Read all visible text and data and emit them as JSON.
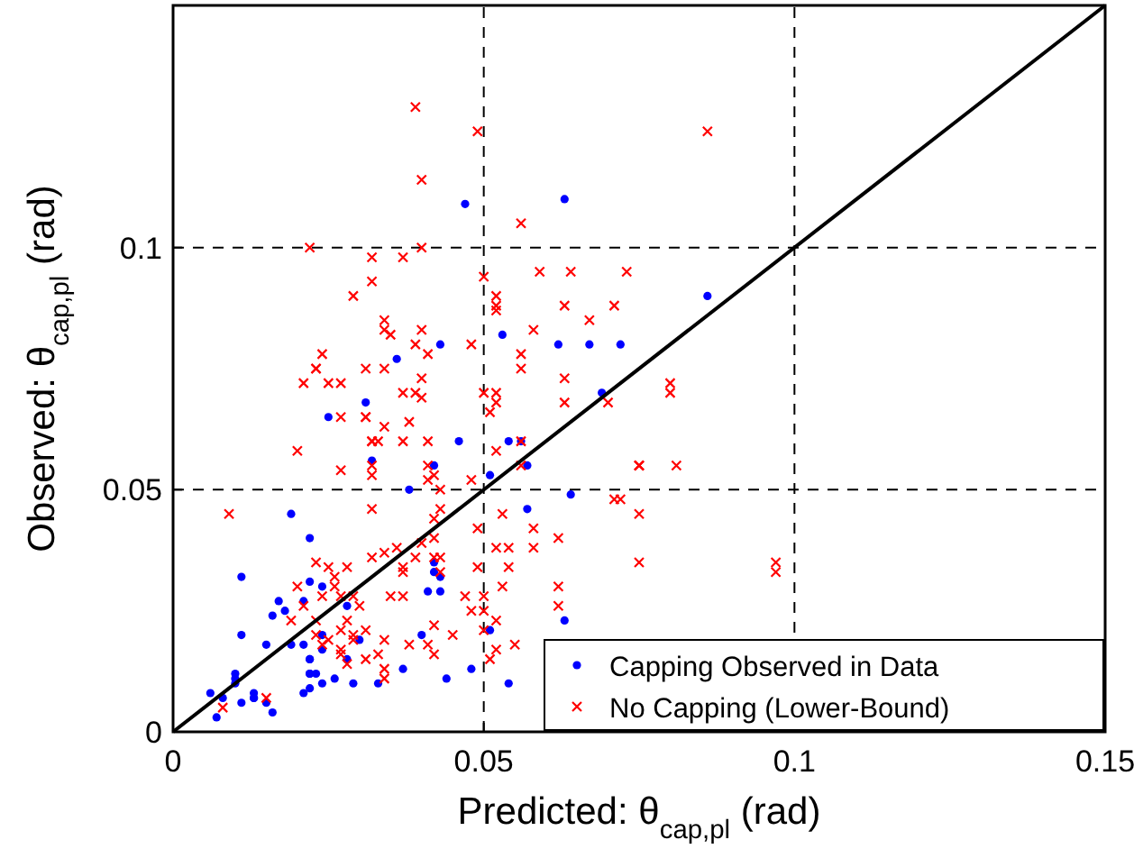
{
  "chart_data": {
    "type": "scatter",
    "xlabel": "Predicted: θ$_{cap,pl}$ (rad)",
    "ylabel": "Observed: θ$_{cap,pl}$ (rad)",
    "xlim": [
      0,
      0.15
    ],
    "ylim": [
      0,
      0.15
    ],
    "xticks": [
      0,
      0.05,
      0.1,
      0.15
    ],
    "yticks": [
      0,
      0.05,
      0.1
    ],
    "grid": true,
    "legend": "bottom right",
    "series": [
      {
        "name": "Capping Observed in Data",
        "color": "#0000ff",
        "marker": "circle",
        "x": [
          0.047,
          0.063,
          0.053,
          0.043,
          0.062,
          0.067,
          0.072,
          0.036,
          0.086,
          0.031,
          0.025,
          0.032,
          0.042,
          0.046,
          0.054,
          0.056,
          0.057,
          0.051,
          0.038,
          0.069,
          0.064,
          0.057,
          0.019,
          0.022,
          0.011,
          0.022,
          0.017,
          0.018,
          0.016,
          0.021,
          0.024,
          0.028,
          0.042,
          0.043,
          0.041,
          0.043,
          0.042,
          0.011,
          0.019,
          0.015,
          0.021,
          0.024,
          0.024,
          0.022,
          0.022,
          0.022,
          0.022,
          0.023,
          0.022,
          0.024,
          0.026,
          0.028,
          0.029,
          0.03,
          0.033,
          0.037,
          0.04,
          0.044,
          0.048,
          0.051,
          0.054,
          0.063,
          0.01,
          0.01,
          0.01,
          0.011,
          0.008,
          0.006,
          0.007,
          0.013,
          0.013,
          0.013,
          0.015,
          0.016,
          0.021
        ],
        "values": [
          0.109,
          0.11,
          0.082,
          0.08,
          0.08,
          0.08,
          0.08,
          0.077,
          0.09,
          0.068,
          0.065,
          0.056,
          0.055,
          0.06,
          0.06,
          0.06,
          0.055,
          0.053,
          0.05,
          0.07,
          0.049,
          0.046,
          0.045,
          0.04,
          0.032,
          0.031,
          0.027,
          0.025,
          0.024,
          0.027,
          0.03,
          0.026,
          0.033,
          0.032,
          0.029,
          0.029,
          0.035,
          0.02,
          0.018,
          0.018,
          0.018,
          0.02,
          0.017,
          0.015,
          0.015,
          0.012,
          0.012,
          0.012,
          0.009,
          0.01,
          0.011,
          0.015,
          0.01,
          0.019,
          0.01,
          0.013,
          0.02,
          0.011,
          0.013,
          0.021,
          0.01,
          0.023,
          0.012,
          0.011,
          0.01,
          0.006,
          0.007,
          0.008,
          0.003,
          0.007,
          0.008,
          0.007,
          0.006,
          0.004,
          0.008
        ]
      },
      {
        "name": "No Capping (Lower-Bound)",
        "color": "#ff0000",
        "marker": "cross",
        "x": [
          0.039,
          0.049,
          0.04,
          0.056,
          0.022,
          0.04,
          0.032,
          0.037,
          0.032,
          0.029,
          0.05,
          0.052,
          0.052,
          0.052,
          0.059,
          0.064,
          0.073,
          0.063,
          0.071,
          0.067,
          0.034,
          0.034,
          0.035,
          0.04,
          0.058,
          0.039,
          0.041,
          0.048,
          0.024,
          0.023,
          0.031,
          0.034,
          0.056,
          0.056,
          0.086,
          0.021,
          0.023,
          0.025,
          0.027,
          0.031,
          0.034,
          0.027,
          0.031,
          0.032,
          0.032,
          0.033,
          0.037,
          0.037,
          0.039,
          0.04,
          0.04,
          0.038,
          0.041,
          0.02,
          0.027,
          0.032,
          0.032,
          0.041,
          0.042,
          0.041,
          0.043,
          0.048,
          0.05,
          0.052,
          0.052,
          0.051,
          0.052,
          0.056,
          0.056,
          0.063,
          0.063,
          0.07,
          0.075,
          0.009,
          0.032,
          0.043,
          0.042,
          0.042,
          0.04,
          0.049,
          0.053,
          0.058,
          0.062,
          0.052,
          0.054,
          0.058,
          0.072,
          0.023,
          0.025,
          0.028,
          0.026,
          0.032,
          0.034,
          0.036,
          0.037,
          0.037,
          0.039,
          0.042,
          0.043,
          0.043,
          0.054,
          0.049,
          0.02,
          0.024,
          0.026,
          0.027,
          0.029,
          0.03,
          0.035,
          0.037,
          0.047,
          0.05,
          0.053,
          0.062,
          0.062,
          0.021,
          0.019,
          0.023,
          0.028,
          0.027,
          0.031,
          0.048,
          0.05,
          0.052,
          0.05,
          0.023,
          0.025,
          0.024,
          0.029,
          0.029,
          0.034,
          0.038,
          0.041,
          0.045,
          0.042,
          0.055,
          0.052,
          0.051,
          0.042,
          0.027,
          0.027,
          0.028,
          0.031,
          0.033,
          0.034,
          0.034,
          0.015,
          0.008,
          0.075,
          0.08,
          0.08,
          0.075,
          0.081,
          0.071,
          0.075,
          0.075,
          0.097,
          0.097
        ],
        "values": [
          0.129,
          0.124,
          0.114,
          0.105,
          0.1,
          0.1,
          0.098,
          0.098,
          0.093,
          0.09,
          0.094,
          0.09,
          0.088,
          0.087,
          0.095,
          0.095,
          0.095,
          0.088,
          0.088,
          0.085,
          0.085,
          0.083,
          0.082,
          0.083,
          0.083,
          0.08,
          0.078,
          0.08,
          0.078,
          0.075,
          0.075,
          0.075,
          0.078,
          0.075,
          0.124,
          0.072,
          0.075,
          0.072,
          0.072,
          0.065,
          0.063,
          0.065,
          0.065,
          0.06,
          0.06,
          0.06,
          0.06,
          0.07,
          0.07,
          0.073,
          0.069,
          0.064,
          0.06,
          0.058,
          0.054,
          0.055,
          0.053,
          0.055,
          0.053,
          0.052,
          0.05,
          0.052,
          0.07,
          0.07,
          0.068,
          0.066,
          0.058,
          0.06,
          0.055,
          0.073,
          0.068,
          0.068,
          0.055,
          0.045,
          0.046,
          0.046,
          0.044,
          0.04,
          0.039,
          0.042,
          0.045,
          0.042,
          0.04,
          0.038,
          0.038,
          0.038,
          0.048,
          0.035,
          0.034,
          0.034,
          0.032,
          0.036,
          0.037,
          0.038,
          0.034,
          0.033,
          0.036,
          0.036,
          0.036,
          0.033,
          0.034,
          0.034,
          0.03,
          0.028,
          0.03,
          0.028,
          0.028,
          0.026,
          0.028,
          0.028,
          0.028,
          0.028,
          0.03,
          0.03,
          0.026,
          0.026,
          0.023,
          0.023,
          0.023,
          0.021,
          0.021,
          0.025,
          0.025,
          0.023,
          0.021,
          0.02,
          0.019,
          0.018,
          0.019,
          0.02,
          0.019,
          0.018,
          0.018,
          0.02,
          0.022,
          0.018,
          0.017,
          0.015,
          0.016,
          0.017,
          0.016,
          0.014,
          0.015,
          0.016,
          0.013,
          0.011,
          0.007,
          0.005,
          0.055,
          0.072,
          0.07,
          0.055,
          0.055,
          0.048,
          0.045,
          0.035,
          0.035,
          0.033
        ]
      },
      {
        "type": "line",
        "color": "#000000",
        "marker": "none",
        "x": [
          0,
          0.15
        ],
        "values": [
          0,
          0.15
        ]
      }
    ]
  }
}
